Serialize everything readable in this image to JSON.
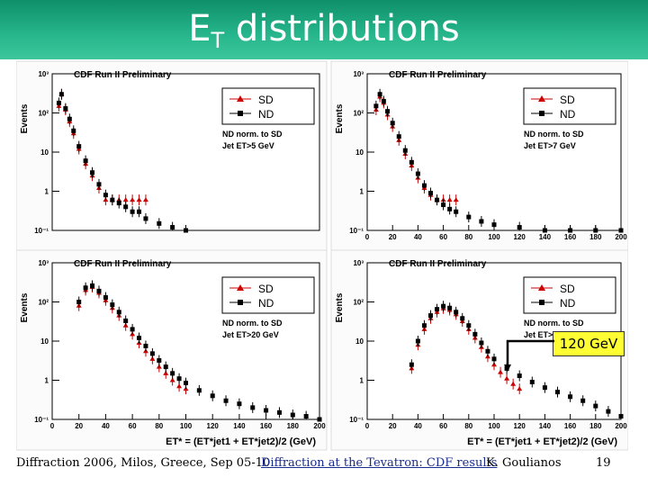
{
  "slide": {
    "title_main": "E",
    "title_sub": "T",
    "title_rest": " distributions",
    "callout": "120 GeV",
    "footer": {
      "left": "Diffraction 2006, Milos, Greece, Sep 05-10",
      "center": "Diffraction at the Tevatron: CDF results",
      "author": "K. Goulianos",
      "page": "19"
    }
  },
  "colors": {
    "sd": "#cc0000",
    "nd": "#000000",
    "title_band": "#25b48a",
    "callout": "#ffff33"
  },
  "chart_data": [
    {
      "type": "scatter",
      "title": "CDF Run II Preliminary",
      "ylabel": "Events",
      "xlabel": "",
      "log_y": true,
      "xlim": [
        0,
        200
      ],
      "ylim": [
        0.1,
        1000
      ],
      "x_ticks": [],
      "y_ticks": [
        "10⁻¹",
        "1",
        "10",
        "10²",
        "10³"
      ],
      "legend": [
        "SD",
        "ND"
      ],
      "note": [
        "ND norm. to SD",
        "Jet ET>5 GeV"
      ],
      "series": [
        {
          "name": "SD",
          "x": [
            5,
            7,
            10,
            13,
            16,
            20,
            25,
            30,
            35,
            40,
            45,
            50,
            55,
            60,
            65,
            70
          ],
          "y": [
            150,
            300,
            120,
            60,
            30,
            12,
            5,
            2.5,
            1.2,
            0.6,
            0.6,
            0.6,
            0.6,
            0.6,
            0.6,
            0.6
          ]
        },
        {
          "name": "ND",
          "x": [
            5,
            7,
            10,
            13,
            16,
            20,
            25,
            30,
            35,
            40,
            45,
            50,
            55,
            60,
            65,
            70,
            80,
            90,
            100
          ],
          "y": [
            180,
            300,
            130,
            70,
            35,
            14,
            6,
            3,
            1.5,
            0.8,
            0.6,
            0.5,
            0.4,
            0.3,
            0.3,
            0.2,
            0.15,
            0.12,
            0.1
          ]
        }
      ]
    },
    {
      "type": "scatter",
      "title": "CDF Run II Preliminary",
      "ylabel": "Events",
      "xlabel": "",
      "log_y": true,
      "xlim": [
        0,
        200
      ],
      "ylim": [
        0.1,
        1000
      ],
      "x_ticks": [
        "0",
        "20",
        "40",
        "60",
        "80",
        "100",
        "120",
        "140",
        "160",
        "180",
        "200"
      ],
      "y_ticks": [
        "10⁻¹",
        "1",
        "10",
        "10²",
        "10³"
      ],
      "legend": [
        "SD",
        "ND"
      ],
      "note": [
        "ND norm. to SD",
        "Jet ET>7 GeV"
      ],
      "series": [
        {
          "name": "SD",
          "x": [
            7,
            10,
            13,
            16,
            20,
            25,
            30,
            35,
            40,
            45,
            50,
            55,
            60,
            65,
            70
          ],
          "y": [
            120,
            260,
            180,
            90,
            45,
            20,
            9,
            4.5,
            2.2,
            1.2,
            0.8,
            0.6,
            0.6,
            0.6,
            0.6
          ]
        },
        {
          "name": "ND",
          "x": [
            7,
            10,
            13,
            16,
            20,
            25,
            30,
            35,
            40,
            45,
            50,
            55,
            60,
            65,
            70,
            80,
            90,
            100,
            120,
            140,
            160,
            180,
            200
          ],
          "y": [
            150,
            300,
            200,
            110,
            55,
            25,
            11,
            5.5,
            2.8,
            1.4,
            0.9,
            0.6,
            0.45,
            0.35,
            0.3,
            0.22,
            0.17,
            0.14,
            0.12,
            0.1,
            0.1,
            0.1,
            0.1
          ]
        }
      ]
    },
    {
      "type": "scatter",
      "title": "CDF Run II Preliminary",
      "ylabel": "Events",
      "xlabel": "ET* = (ET*jet1 + ET*jet2)/2 (GeV)",
      "log_y": true,
      "xlim": [
        0,
        200
      ],
      "ylim": [
        0.1,
        1000
      ],
      "x_ticks": [
        "0",
        "20",
        "40",
        "60",
        "80",
        "100",
        "120",
        "140",
        "160",
        "180",
        "200"
      ],
      "y_ticks": [
        "10⁻¹",
        "1",
        "10",
        "10²",
        "10³"
      ],
      "legend": [
        "SD",
        "ND"
      ],
      "note": [
        "ND norm. to SD",
        "Jet ET>20 GeV"
      ],
      "series": [
        {
          "name": "SD",
          "x": [
            20,
            25,
            30,
            35,
            40,
            45,
            50,
            55,
            60,
            65,
            70,
            75,
            80,
            85,
            90,
            95,
            100
          ],
          "y": [
            80,
            200,
            240,
            170,
            110,
            70,
            45,
            25,
            15,
            9,
            5.5,
            3.5,
            2.2,
            1.5,
            1,
            0.7,
            0.6
          ]
        },
        {
          "name": "ND",
          "x": [
            20,
            25,
            30,
            35,
            40,
            45,
            50,
            55,
            60,
            65,
            70,
            75,
            80,
            85,
            90,
            95,
            100,
            110,
            120,
            130,
            140,
            150,
            160,
            170,
            180,
            190,
            200
          ],
          "y": [
            100,
            230,
            260,
            190,
            130,
            85,
            55,
            33,
            20,
            12,
            7.5,
            4.8,
            3.2,
            2.2,
            1.5,
            1.1,
            0.85,
            0.55,
            0.4,
            0.3,
            0.25,
            0.2,
            0.17,
            0.15,
            0.13,
            0.12,
            0.1
          ]
        }
      ]
    },
    {
      "type": "scatter",
      "title": "CDF Run II Preliminary",
      "ylabel": "Events",
      "xlabel": "ET* = (ET*jet1 + ET*jet2)/2 (GeV)",
      "log_y": true,
      "xlim": [
        0,
        200
      ],
      "ylim": [
        0.1,
        1000
      ],
      "x_ticks": [
        "0",
        "20",
        "40",
        "60",
        "80",
        "100",
        "120",
        "140",
        "160",
        "180",
        "200"
      ],
      "y_ticks": [
        "10⁻¹",
        "1",
        "10",
        "10²",
        "10³"
      ],
      "legend": [
        "SD",
        "ND"
      ],
      "note": [
        "ND norm. to SD",
        "Jet ET>50 GeV"
      ],
      "series": [
        {
          "name": "SD",
          "x": [
            35,
            40,
            45,
            50,
            55,
            60,
            65,
            70,
            75,
            80,
            85,
            90,
            95,
            100,
            105,
            110,
            115,
            120
          ],
          "y": [
            2,
            8,
            20,
            38,
            55,
            68,
            62,
            48,
            32,
            20,
            12,
            7,
            4,
            2.5,
            1.6,
            1.1,
            0.8,
            0.6
          ]
        },
        {
          "name": "ND",
          "x": [
            35,
            40,
            45,
            50,
            55,
            60,
            65,
            70,
            75,
            80,
            85,
            90,
            95,
            100,
            110,
            120,
            130,
            140,
            150,
            160,
            170,
            180,
            190,
            200
          ],
          "y": [
            2.5,
            10,
            25,
            45,
            65,
            78,
            70,
            55,
            38,
            25,
            15,
            9,
            5.5,
            3.5,
            2,
            1.3,
            0.9,
            0.65,
            0.5,
            0.38,
            0.3,
            0.22,
            0.16,
            0.12
          ]
        }
      ]
    }
  ]
}
